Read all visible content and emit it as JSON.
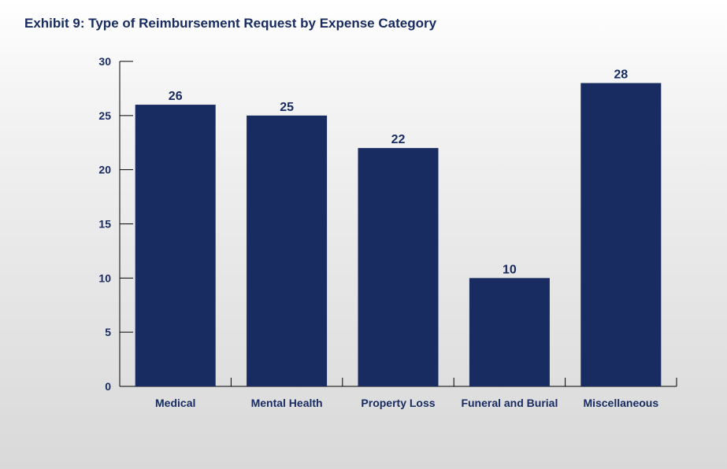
{
  "chart_data": {
    "type": "bar",
    "title": "Exhibit 9: Type of Reimbursement Request by Expense Category",
    "categories": [
      "Medical",
      "Mental Health",
      "Property Loss",
      "Funeral and Burial",
      "Miscellaneous"
    ],
    "values": [
      26,
      25,
      22,
      10,
      28
    ],
    "data_labels": [
      "26",
      "25",
      "22",
      "10",
      "28"
    ],
    "yticks": [
      "0",
      "5",
      "10",
      "15",
      "20",
      "25",
      "30"
    ],
    "ytick_values": [
      0,
      5,
      10,
      15,
      20,
      25,
      30
    ],
    "ylim": [
      0,
      30
    ],
    "xlabel": "",
    "ylabel": "",
    "grid": false,
    "legend": "none",
    "bar_color": "#182c61",
    "text_color": "#182c61"
  }
}
